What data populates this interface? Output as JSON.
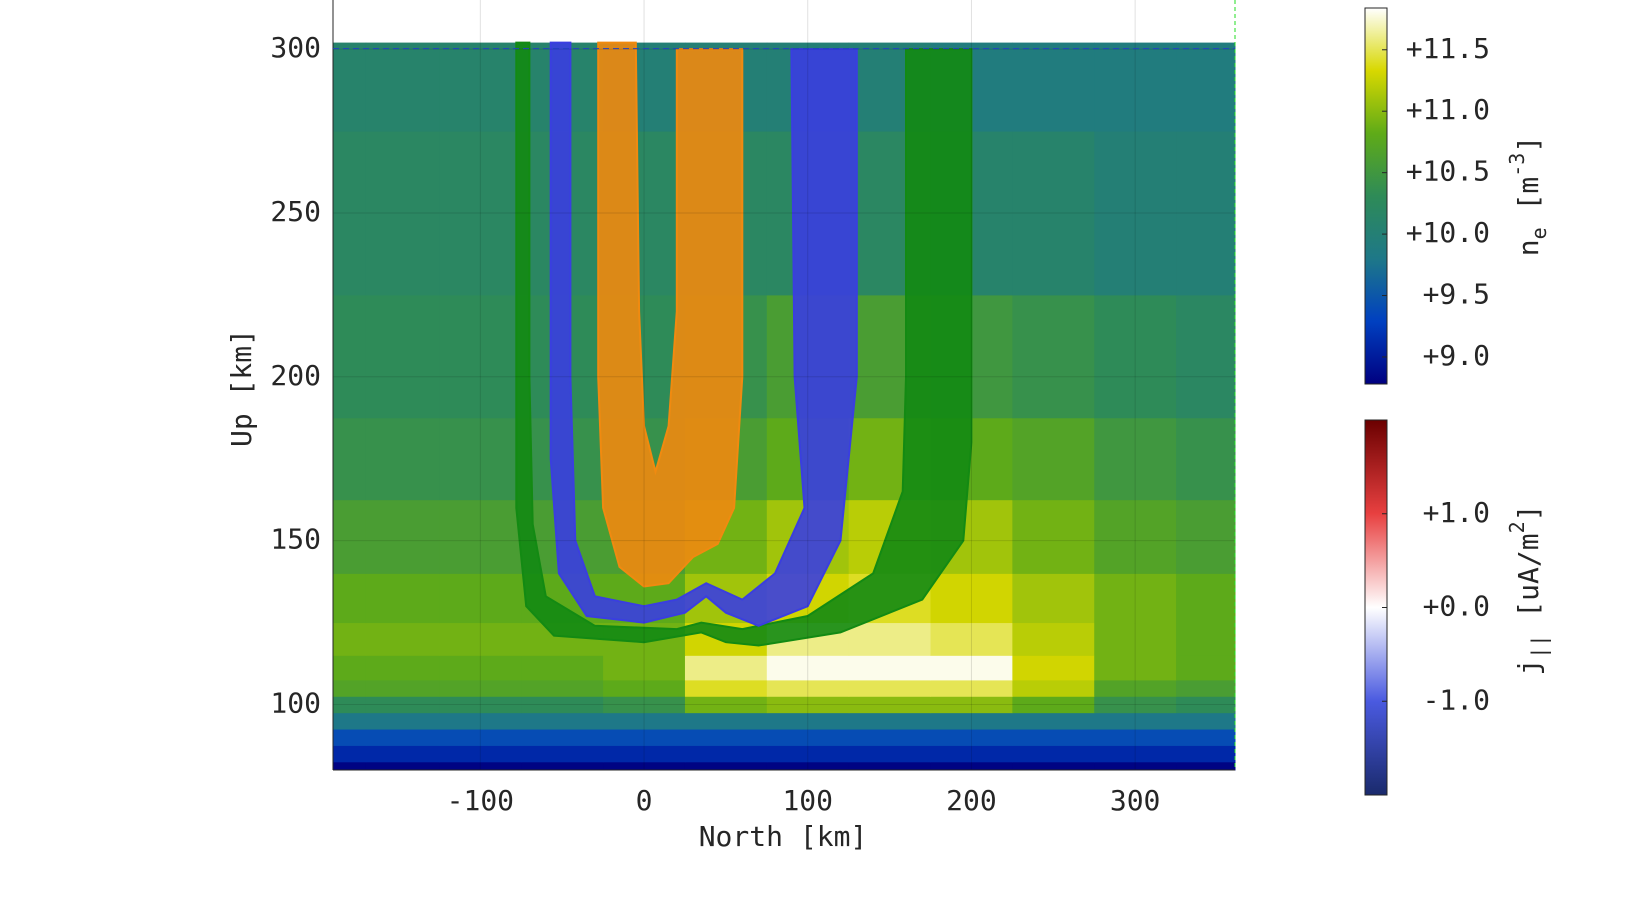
{
  "chart_data": {
    "type": "heatmap",
    "x_label": "North [km]",
    "y_label": "Up [km]",
    "xlim": [
      -190,
      361
    ],
    "ylim": [
      80,
      315
    ],
    "xticks": [
      -100,
      0,
      100,
      200,
      300
    ],
    "yticks": [
      100,
      150,
      200,
      250,
      300
    ],
    "grid": true,
    "x_edges": [
      -190,
      -170,
      -125,
      -75,
      -25,
      25,
      75,
      125,
      175,
      225,
      275,
      325,
      361
    ],
    "y_edges": [
      80,
      82.5,
      87.5,
      92.5,
      97.5,
      102.5,
      107.5,
      115,
      125,
      140,
      162.5,
      187.5,
      225,
      275,
      302
    ],
    "z": [
      [
        8.8,
        8.8,
        8.8,
        8.8,
        8.8,
        8.8,
        8.8,
        8.8,
        8.8,
        8.8,
        8.8,
        8.8
      ],
      [
        9.1,
        9.1,
        9.1,
        9.1,
        9.1,
        9.1,
        9.1,
        9.1,
        9.1,
        9.1,
        9.1,
        9.1
      ],
      [
        9.4,
        9.4,
        9.4,
        9.4,
        9.4,
        9.4,
        9.4,
        9.4,
        9.4,
        9.4,
        9.4,
        9.4
      ],
      [
        9.8,
        9.8,
        9.8,
        9.8,
        9.8,
        9.8,
        9.8,
        9.8,
        9.8,
        9.8,
        9.8,
        9.8
      ],
      [
        10.3,
        10.3,
        10.3,
        10.3,
        10.4,
        10.9,
        11.0,
        11.0,
        11.0,
        10.8,
        10.4,
        10.3
      ],
      [
        10.7,
        10.7,
        10.7,
        10.7,
        10.8,
        11.4,
        11.5,
        11.5,
        11.5,
        11.2,
        10.7,
        10.6
      ],
      [
        10.8,
        10.8,
        10.8,
        10.8,
        10.9,
        11.6,
        11.8,
        11.8,
        11.8,
        11.3,
        10.9,
        10.8
      ],
      [
        10.9,
        10.9,
        10.9,
        10.9,
        10.9,
        11.3,
        11.6,
        11.6,
        11.5,
        11.2,
        10.9,
        10.8
      ],
      [
        10.8,
        10.8,
        10.8,
        10.8,
        10.8,
        11.1,
        11.3,
        11.4,
        11.3,
        11.1,
        10.9,
        10.8
      ],
      [
        10.6,
        10.6,
        10.6,
        10.6,
        10.6,
        10.9,
        11.1,
        11.2,
        11.1,
        10.9,
        10.7,
        10.6
      ],
      [
        10.4,
        10.4,
        10.4,
        10.4,
        10.4,
        10.6,
        10.8,
        10.9,
        10.8,
        10.7,
        10.5,
        10.4
      ],
      [
        10.3,
        10.3,
        10.3,
        10.3,
        10.3,
        10.4,
        10.6,
        10.6,
        10.5,
        10.4,
        10.3,
        10.2
      ],
      [
        10.2,
        10.2,
        10.2,
        10.2,
        10.2,
        10.2,
        10.2,
        10.2,
        10.1,
        10.1,
        10.0,
        10.0
      ],
      [
        10.1,
        10.1,
        10.1,
        10.1,
        10.0,
        10.0,
        10.0,
        10.0,
        9.9,
        9.9,
        9.9,
        9.9
      ]
    ],
    "colorbars": [
      {
        "label_parts": [
          "n",
          "e",
          " [m",
          "-3",
          "]"
        ],
        "clim": [
          8.78,
          11.84
        ],
        "colormap": [
          "#000080",
          "#0040c0",
          "#1e7888",
          "#2e8b57",
          "#5fab18",
          "#d8d800",
          "#ffffff"
        ],
        "ticks": [
          {
            "value": 9,
            "label": "+9.0"
          },
          {
            "value": 9.5,
            "label": "+9.5"
          },
          {
            "value": 10,
            "label": "+10.0"
          },
          {
            "value": 10.5,
            "label": "+10.5"
          },
          {
            "value": 11,
            "label": "+11.0"
          },
          {
            "value": 11.5,
            "label": "+11.5"
          }
        ]
      },
      {
        "label_parts": [
          "j",
          "||",
          " [uA/m",
          "2",
          "]"
        ],
        "clim": [
          -2,
          2
        ],
        "colormap": [
          "#1a2a6c",
          "#4a5ae0",
          "#ffffff",
          "#e84040",
          "#6b0000"
        ],
        "ticks": [
          {
            "value": -1,
            "label": "-1.0"
          },
          {
            "value": 0,
            "label": "+0.0"
          },
          {
            "value": 1,
            "label": "+1.0"
          }
        ]
      }
    ],
    "series": [
      {
        "color": "#138a13",
        "x": [
          -78,
          -78,
          -72,
          -55,
          0,
          35,
          50,
          70,
          120,
          170,
          195,
          200,
          200,
          160,
          160,
          158,
          140,
          100,
          60,
          35,
          20,
          -30,
          -60,
          -68,
          -70,
          -70
        ],
        "y": [
          302,
          160,
          130,
          121,
          119,
          122,
          119,
          118,
          122,
          132,
          150,
          180,
          300,
          300,
          200,
          165,
          140,
          127,
          123,
          125,
          123,
          124,
          133,
          155,
          200,
          302
        ]
      },
      {
        "color": "#3a3ee0",
        "x": [
          -57,
          -57,
          -52,
          -35,
          0,
          25,
          38,
          50,
          70,
          100,
          120,
          130,
          130,
          90,
          92,
          98,
          80,
          60,
          38,
          20,
          0,
          -30,
          -42,
          -45,
          -45
        ],
        "y": [
          302,
          175,
          140,
          127,
          125,
          128,
          133,
          128,
          124,
          130,
          150,
          200,
          300,
          300,
          200,
          160,
          140,
          132,
          137,
          132,
          130,
          133,
          150,
          200,
          302
        ]
      },
      {
        "color": "#f08a10",
        "x": [
          -28,
          -28,
          -25,
          -15,
          0,
          15,
          30,
          45,
          55,
          60,
          60,
          20,
          20,
          15,
          7,
          0,
          -3,
          -5
        ],
        "y": [
          302,
          200,
          160,
          142,
          136,
          137,
          145,
          149,
          160,
          200,
          300,
          300,
          220,
          185,
          171,
          185,
          220,
          302
        ]
      }
    ]
  }
}
